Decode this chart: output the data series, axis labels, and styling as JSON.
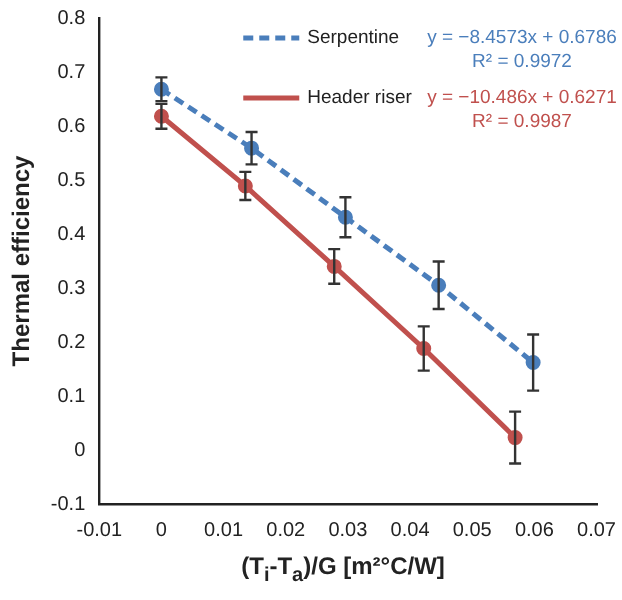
{
  "chart_data": {
    "type": "line",
    "ylabel": "Thermal efficiency",
    "xlabel": "(T$_{i}$-T$_{a}$)/G [m²°C/W]",
    "xlim": [
      -0.01,
      0.07
    ],
    "xticks": [
      -0.01,
      0,
      0.01,
      0.02,
      0.03,
      0.04,
      0.05,
      0.06,
      0.07
    ],
    "ylim": [
      -0.1,
      0.8
    ],
    "yticks": [
      -0.1,
      0,
      0.1,
      0.2,
      0.3,
      0.4,
      0.5,
      0.6,
      0.7,
      0.8
    ],
    "grid": false,
    "legend": "top right",
    "marker": "circle",
    "series": [
      {
        "name": "Serpentine",
        "color": "#4a7ebb",
        "line_style": "dashed",
        "x": [
          0,
          0.0145,
          0.0296,
          0.0446,
          0.0598
        ],
        "values": [
          0.668,
          0.559,
          0.431,
          0.305,
          0.162
        ],
        "errors": [
          0.022,
          0.03,
          0.037,
          0.044,
          0.052
        ]
      },
      {
        "name": "Header riser",
        "color": "#c0504d",
        "line_style": "solid",
        "x": [
          0,
          0.0135,
          0.0278,
          0.0422,
          0.0569
        ],
        "values": [
          0.618,
          0.489,
          0.34,
          0.188,
          0.023
        ],
        "errors": [
          0.023,
          0.026,
          0.032,
          0.041,
          0.048
        ]
      }
    ],
    "annotations": [
      "y = −8.4573x + 0.6786",
      "R² = 0.9972",
      "y = −10.486x + 0.6271",
      "R² = 0.9987"
    ]
  }
}
